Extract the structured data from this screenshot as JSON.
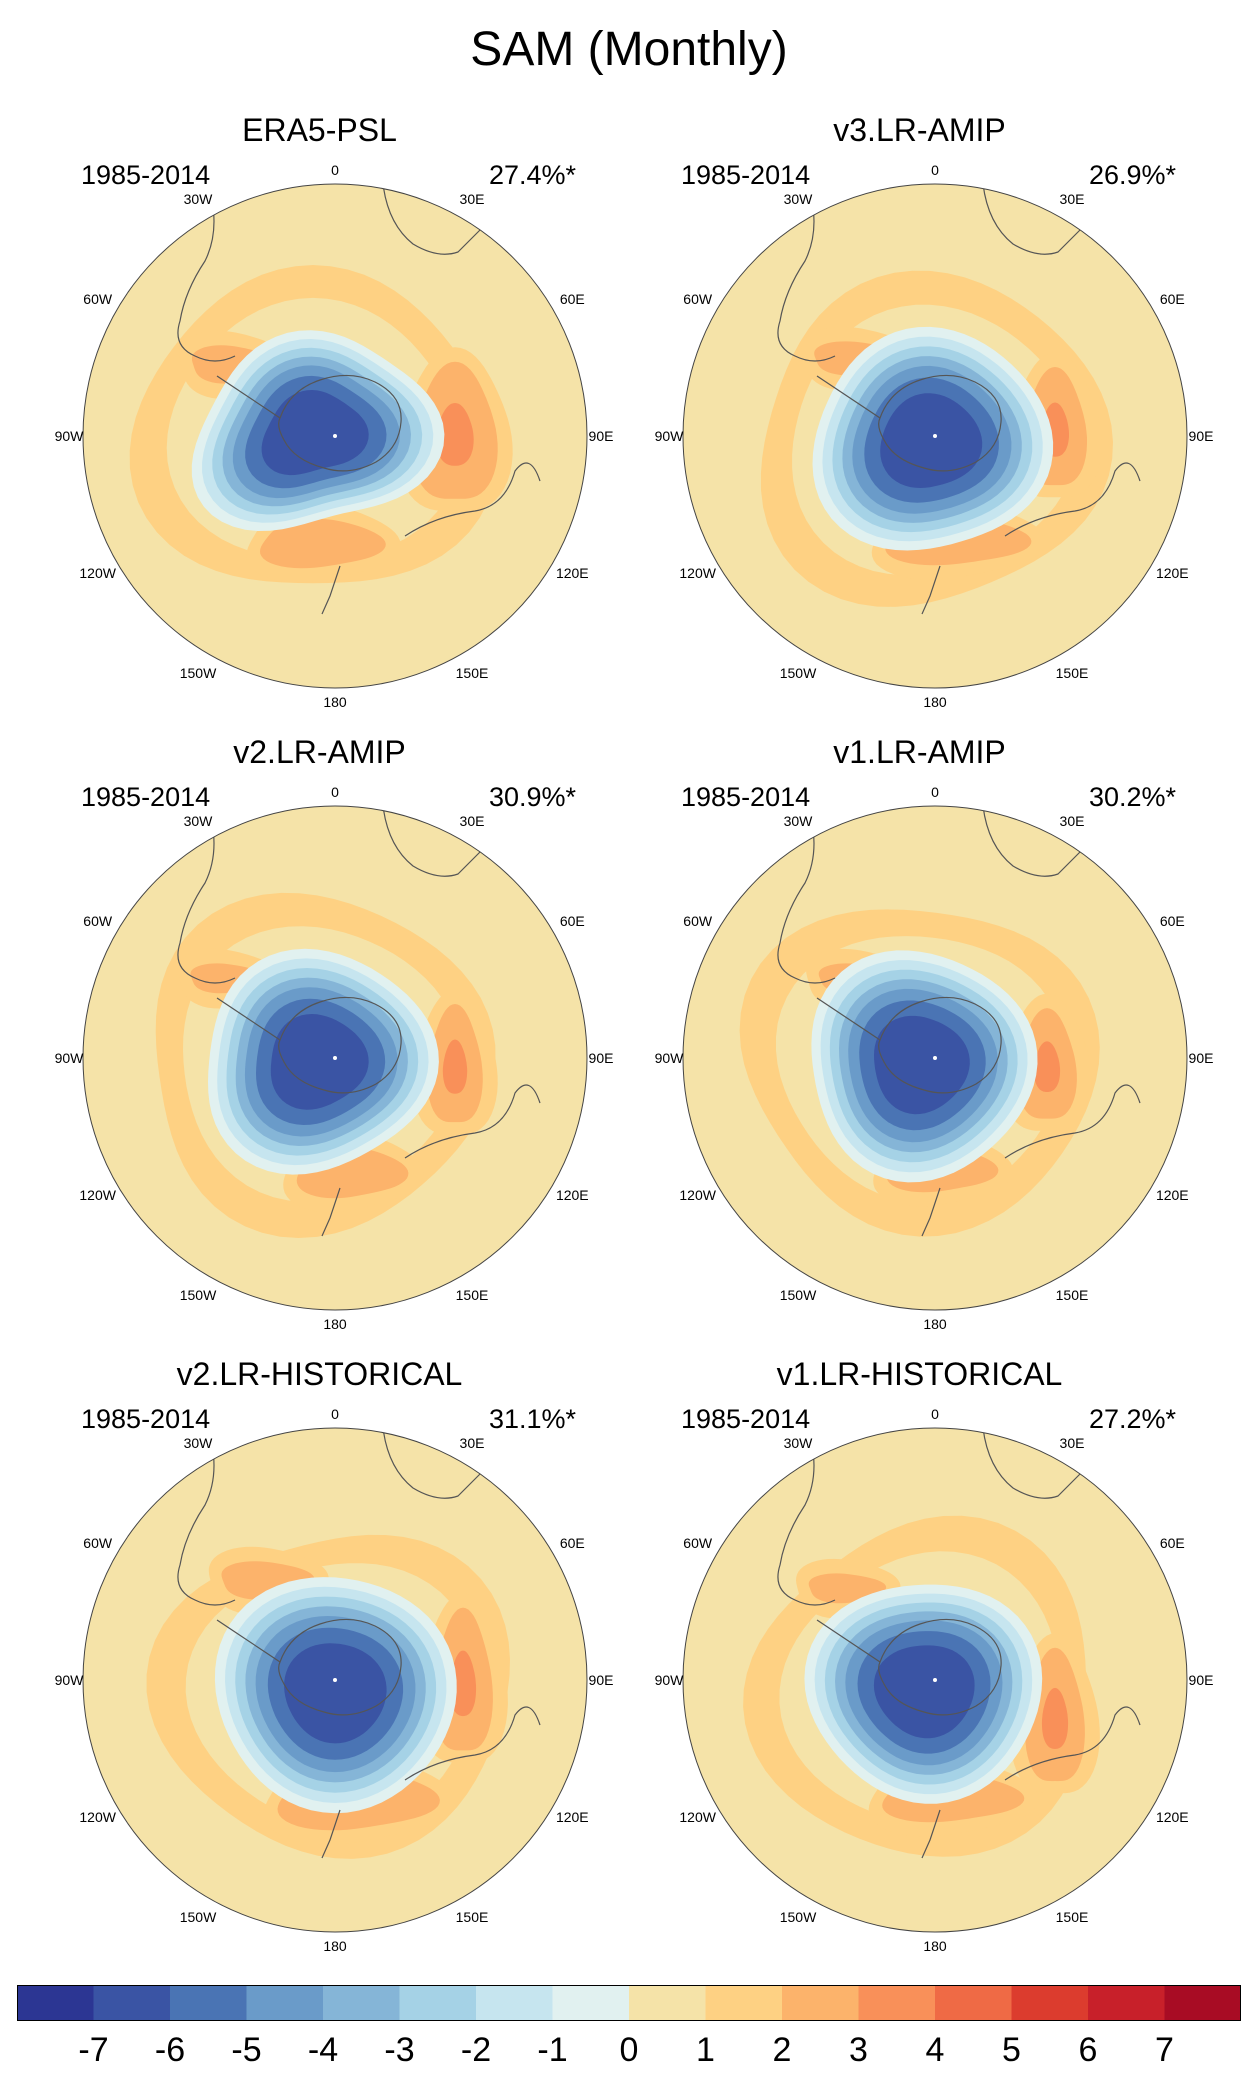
{
  "title": "SAM (Monthly)",
  "panels": [
    {
      "title": "ERA5-PSL",
      "period": "1985-2014",
      "variance": "27.4%*",
      "style": "obs"
    },
    {
      "title": "v3.LR-AMIP",
      "period": "1985-2014",
      "variance": "26.9%*",
      "style": "v3"
    },
    {
      "title": "v2.LR-AMIP",
      "period": "1985-2014",
      "variance": "30.9%*",
      "style": "v2amip"
    },
    {
      "title": "v1.LR-AMIP",
      "period": "1985-2014",
      "variance": "30.2%*",
      "style": "v1amip"
    },
    {
      "title": "v2.LR-HISTORICAL",
      "period": "1985-2014",
      "variance": "31.1%*",
      "style": "v2hist"
    },
    {
      "title": "v1.LR-HISTORICAL",
      "period": "1985-2014",
      "variance": "27.2%*",
      "style": "v1hist"
    }
  ],
  "longitude_labels": [
    "0",
    "30E",
    "60E",
    "90E",
    "120E",
    "150E",
    "180",
    "150W",
    "120W",
    "90W",
    "60W",
    "30W"
  ],
  "colorbar": {
    "labels": [
      "-7",
      "-6",
      "-5",
      "-4",
      "-3",
      "-2",
      "-1",
      "0",
      "1",
      "2",
      "3",
      "4",
      "5",
      "6",
      "7"
    ],
    "colors": [
      "#2c3693",
      "#3a54a4",
      "#4a74b4",
      "#6a9bc9",
      "#85b5d7",
      "#a5d2e6",
      "#c6e5ef",
      "#e1f1f0",
      "#f5e3a8",
      "#fed183",
      "#fcb36b",
      "#f99059",
      "#ef6a45",
      "#dc3c2e",
      "#c8202a",
      "#a80c24"
    ]
  }
}
